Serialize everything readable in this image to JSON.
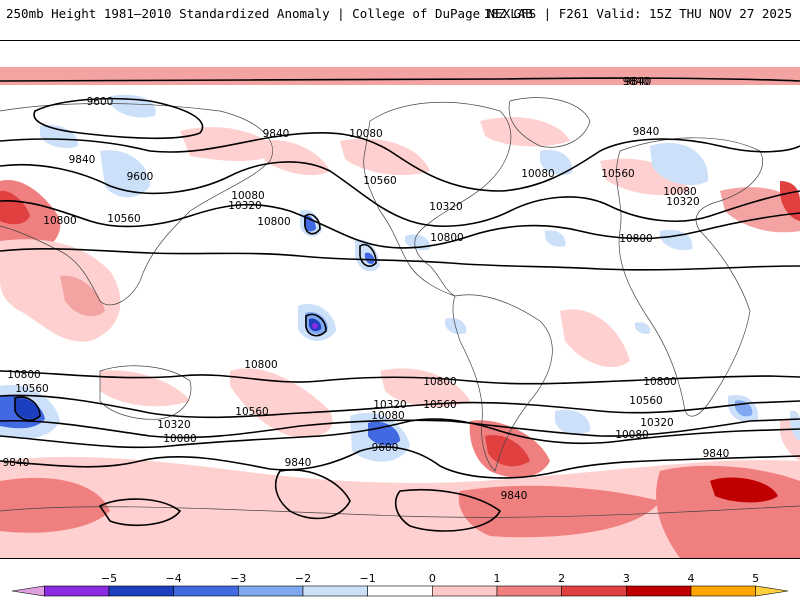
{
  "header": {
    "title": "250mb Height 1981–2010 Standardized Anomaly | College of DuPage NEXLAB",
    "run_info": "18Z GFS | F261 Valid: 15Z THU NOV 27 2025"
  },
  "contour_labels": {
    "c1": "9600",
    "c2": "9840",
    "c3": "10080",
    "c4": "9840",
    "c5": "9840",
    "c6": "9600",
    "c7": "10080",
    "c8": "10320",
    "c9": "10800",
    "c10": "10560",
    "c11": "10800",
    "c12": "10560",
    "c13": "10320",
    "c14": "10800",
    "c15": "10080",
    "c16": "10560",
    "c17": "9840",
    "c18": "9840",
    "c19": "10080",
    "c20": "10320",
    "c21": "10800",
    "c22": "10800",
    "c23": "10560",
    "c24": "10320",
    "c25": "10080",
    "c26": "9840",
    "c27": "10800",
    "c28": "10560",
    "c29": "10320",
    "c30": "10080",
    "c31": "9600",
    "c32": "9840",
    "c33": "10800",
    "c34": "10560",
    "c35": "10800",
    "c36": "10560",
    "c37": "10320",
    "c38": "10080",
    "c39": "9840",
    "c40": "9840"
  },
  "legend": {
    "ticks": [
      "−5",
      "−4",
      "−3",
      "−2",
      "−1",
      "0",
      "1",
      "2",
      "3",
      "4",
      "5"
    ],
    "colors": [
      "#e0a0e0",
      "#8a2be2",
      "#1c3fbf",
      "#4169e1",
      "#7fa8f0",
      "#cce0fa",
      "#ffffff",
      "#ffc8c8",
      "#f08080",
      "#e04040",
      "#c00000",
      "#ffa500",
      "#ffd040"
    ]
  }
}
